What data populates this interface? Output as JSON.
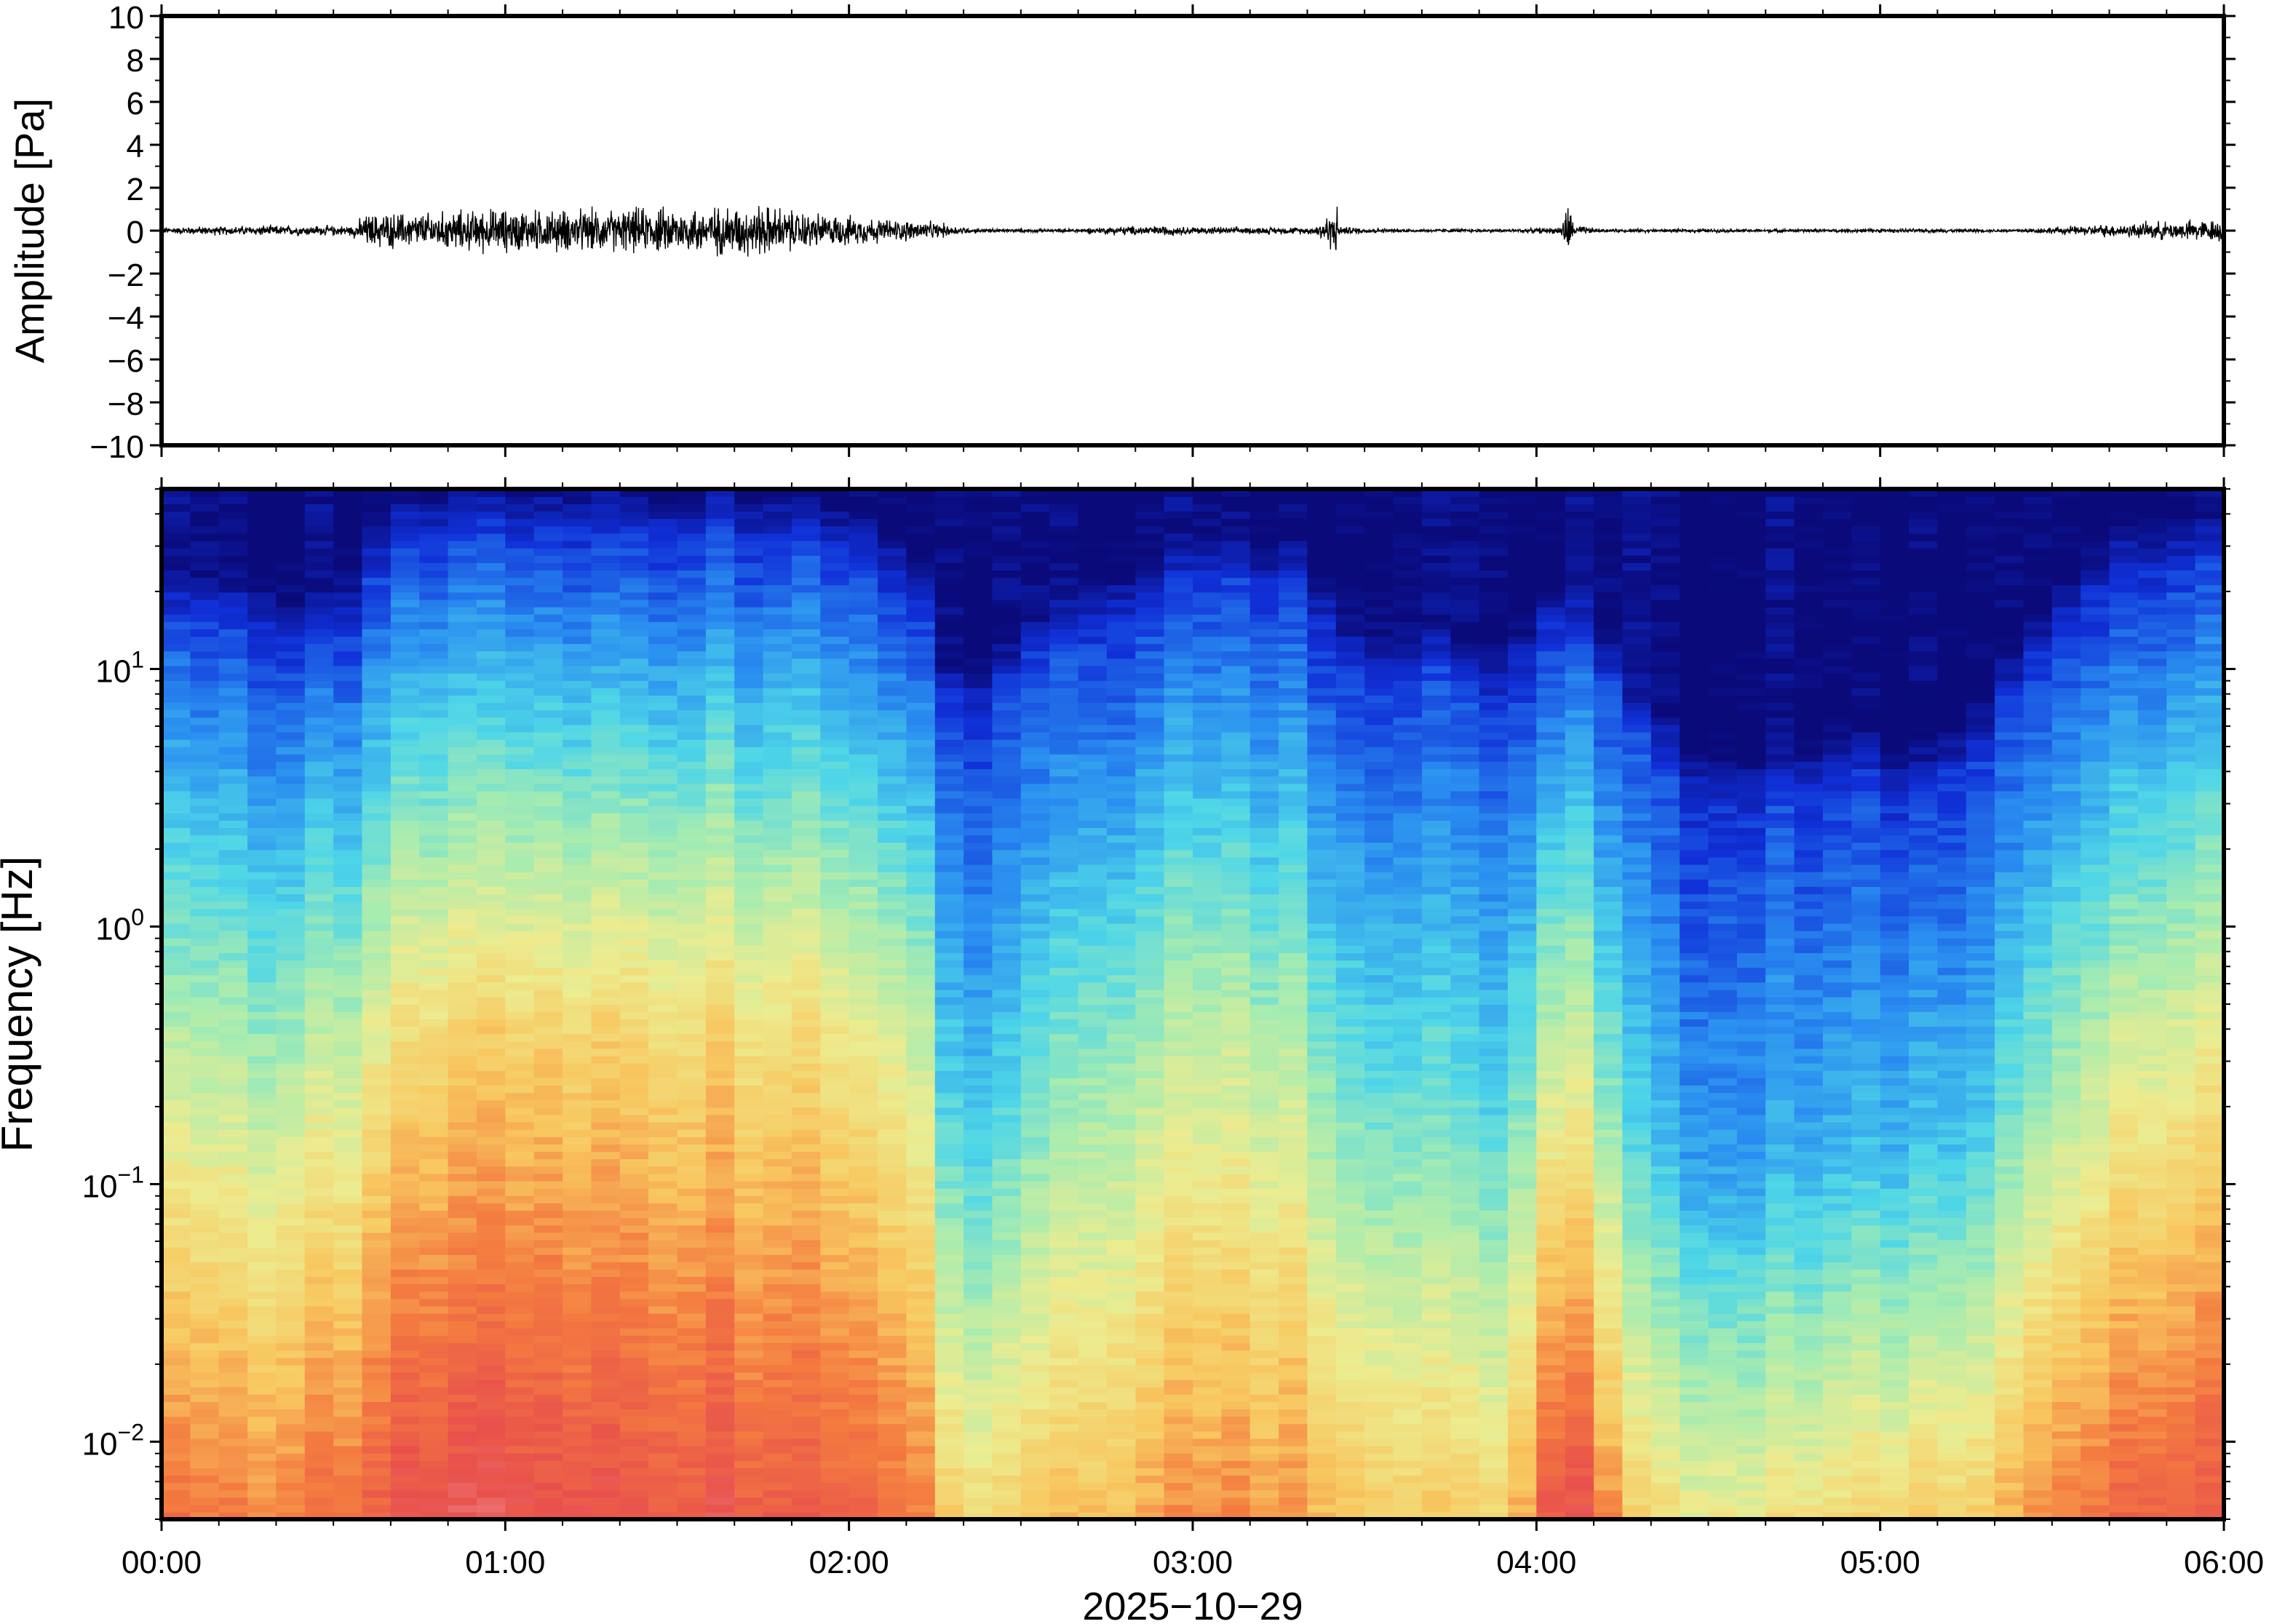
{
  "chart_data": [
    {
      "type": "line",
      "title": "",
      "xlabel": "",
      "ylabel": "Amplitude [Pa]",
      "ylim": [
        -10,
        10
      ],
      "yticks": [
        "10",
        "8",
        "6",
        "4",
        "2",
        "0",
        "−2",
        "−4",
        "−6",
        "−8",
        "−10"
      ],
      "ytick_values": [
        10,
        8,
        6,
        4,
        2,
        0,
        -2,
        -4,
        -6,
        -8,
        -10
      ],
      "xlim_hours": [
        0,
        6
      ],
      "series": [
        {
          "color": "#000000",
          "envelope_time_hours": [
            0.0,
            0.3,
            0.55,
            0.6,
            0.8,
            1.0,
            1.2,
            1.4,
            1.6,
            1.75,
            1.9,
            2.1,
            2.25,
            2.35,
            2.6,
            2.85,
            3.1,
            3.35,
            3.42,
            3.43,
            3.6,
            3.9,
            4.07,
            4.09,
            4.11,
            4.2,
            4.6,
            5.0,
            5.4,
            5.6,
            5.8,
            6.0
          ],
          "envelope_amplitude_pa": [
            0.2,
            0.3,
            0.3,
            1.0,
            1.1,
            1.3,
            1.2,
            1.3,
            1.4,
            1.5,
            1.0,
            0.7,
            0.5,
            0.15,
            0.1,
            0.3,
            0.2,
            0.2,
            1.4,
            0.25,
            0.1,
            0.1,
            0.2,
            1.7,
            0.3,
            0.1,
            0.1,
            0.12,
            0.1,
            0.3,
            0.5,
            0.7
          ]
        }
      ],
      "grid": false
    },
    {
      "type": "heatmap",
      "title": "",
      "xlabel": "2025−10−29",
      "ylabel": "Frequency [Hz]",
      "yscale": "log",
      "ylim_hz": [
        0.005,
        50
      ],
      "yticks": [
        {
          "base": "10",
          "exp": "−2",
          "value": 0.01
        },
        {
          "base": "10",
          "exp": "−1",
          "value": 0.1
        },
        {
          "base": "10",
          "exp": "0",
          "value": 1
        },
        {
          "base": "10",
          "exp": "1",
          "value": 10
        }
      ],
      "xticks": [
        "00:00",
        "01:00",
        "02:00",
        "03:00",
        "04:00",
        "05:00",
        "06:00"
      ],
      "xtick_values_hours": [
        0,
        1,
        2,
        3,
        4,
        5,
        6
      ],
      "colormap": "spectral_r",
      "colormap_stops": [
        "#0a0a7a",
        "#1030d8",
        "#2a8ef0",
        "#4ed6e8",
        "#a8ecb0",
        "#ecec90",
        "#f8c860",
        "#f47c40",
        "#e8504c",
        "#f08a8a"
      ],
      "time_bins_hours": [
        0.0,
        0.25,
        0.5,
        0.7,
        1.0,
        1.3,
        1.6,
        1.9,
        2.2,
        2.3,
        2.45,
        2.7,
        2.9,
        3.1,
        3.3,
        3.5,
        3.7,
        3.9,
        4.05,
        4.15,
        4.3,
        4.5,
        4.7,
        4.9,
        5.1,
        5.3,
        5.5,
        5.7,
        6.0
      ],
      "top_cutoff_hz": [
        15,
        15,
        12,
        30,
        32,
        35,
        33,
        30,
        20,
        6,
        8,
        15,
        18,
        22,
        20,
        8,
        10,
        7,
        15,
        12,
        5,
        3,
        3,
        4,
        3,
        5,
        12,
        25,
        25
      ],
      "upper_level": [
        0.35,
        0.35,
        0.38,
        0.45,
        0.5,
        0.52,
        0.5,
        0.48,
        0.42,
        0.22,
        0.25,
        0.38,
        0.4,
        0.4,
        0.38,
        0.28,
        0.3,
        0.25,
        0.35,
        0.32,
        0.22,
        0.18,
        0.18,
        0.2,
        0.2,
        0.22,
        0.3,
        0.38,
        0.4
      ],
      "low_level": [
        0.78,
        0.78,
        0.8,
        0.88,
        0.9,
        0.9,
        0.88,
        0.85,
        0.82,
        0.62,
        0.62,
        0.68,
        0.72,
        0.75,
        0.74,
        0.66,
        0.64,
        0.62,
        0.9,
        0.85,
        0.6,
        0.58,
        0.58,
        0.62,
        0.64,
        0.66,
        0.78,
        0.86,
        0.86
      ],
      "grid": false
    }
  ]
}
